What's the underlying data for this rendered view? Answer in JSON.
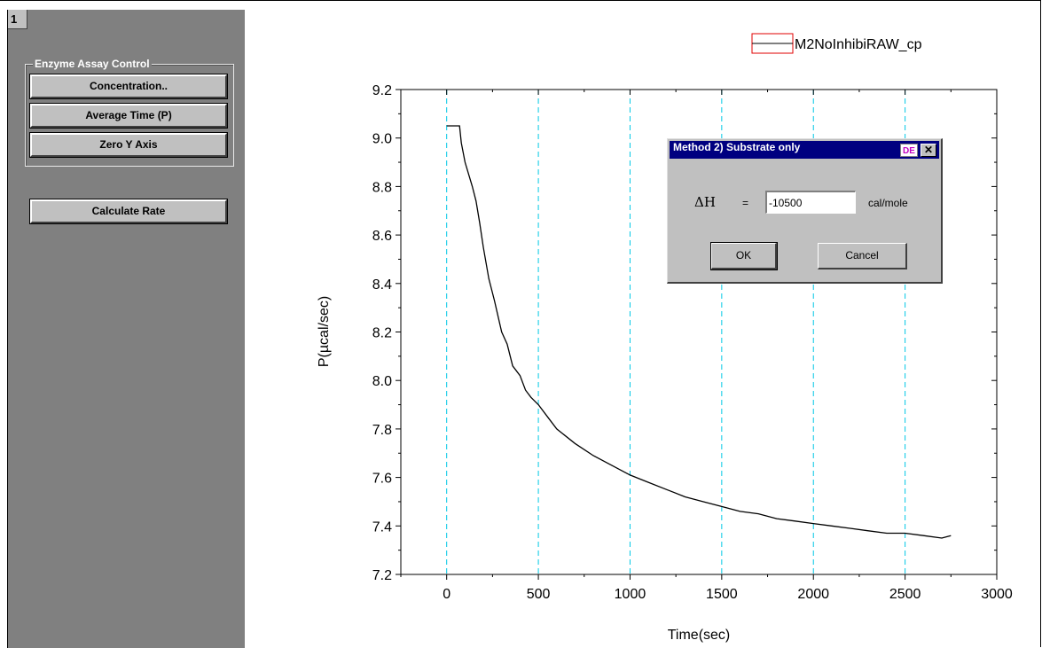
{
  "panel": {
    "number": "1",
    "group_label": "Enzyme Assay Control",
    "buttons": {
      "concentration": "Concentration..",
      "average_time": "Average Time (P)",
      "zero_y": "Zero Y Axis",
      "calculate_rate": "Calculate Rate"
    }
  },
  "dialog": {
    "title": "Method 2) Substrate only",
    "help_label": "DE",
    "close_label": "✕",
    "dh_label": "ΔH",
    "equals": "=",
    "dh_value": "-10500",
    "unit": "cal/mole",
    "ok_label": "OK",
    "cancel_label": "Cancel"
  },
  "colors": {
    "panel_bg": "#808080",
    "grid": "#00c8e6",
    "series": "#000000",
    "legend_box": "#e00000",
    "title_bar": "#000080"
  },
  "chart_data": {
    "type": "line",
    "xlabel": "Time(sec)",
    "ylabel": "P(µcal/sec)",
    "xlim": [
      -250,
      3000
    ],
    "ylim": [
      7.2,
      9.2
    ],
    "xticks": [
      0,
      500,
      1000,
      1500,
      2000,
      2500,
      3000
    ],
    "xtick_labels": [
      "0",
      "500",
      "1000",
      "1500",
      "2000",
      "2500",
      "3000"
    ],
    "yticks": [
      7.2,
      7.4,
      7.6,
      7.8,
      8.0,
      8.2,
      8.4,
      8.6,
      8.8,
      9.0,
      9.2
    ],
    "ytick_labels": [
      "7.2",
      "7.4",
      "7.6",
      "7.8",
      "8.0",
      "8.2",
      "8.4",
      "8.6",
      "8.8",
      "9.0",
      "9.2"
    ],
    "grid_x": [
      0,
      500,
      1000,
      1500,
      2000,
      2500
    ],
    "grid": "vertical dashed",
    "legend": "top-right",
    "series": [
      {
        "name": "M2NoInhibiRAW_cp",
        "x": [
          0,
          30,
          70,
          80,
          100,
          140,
          160,
          180,
          200,
          230,
          260,
          300,
          330,
          360,
          400,
          430,
          460,
          500,
          550,
          600,
          700,
          800,
          900,
          1000,
          1100,
          1200,
          1300,
          1400,
          1500,
          1600,
          1700,
          1800,
          1900,
          2000,
          2100,
          2200,
          2300,
          2400,
          2500,
          2600,
          2700,
          2750
        ],
        "y": [
          9.05,
          9.05,
          9.05,
          8.98,
          8.9,
          8.8,
          8.74,
          8.65,
          8.55,
          8.42,
          8.33,
          8.2,
          8.15,
          8.06,
          8.02,
          7.96,
          7.93,
          7.9,
          7.85,
          7.8,
          7.74,
          7.69,
          7.65,
          7.61,
          7.58,
          7.55,
          7.52,
          7.5,
          7.48,
          7.46,
          7.45,
          7.43,
          7.42,
          7.41,
          7.4,
          7.39,
          7.38,
          7.37,
          7.37,
          7.36,
          7.35,
          7.36
        ]
      }
    ]
  }
}
